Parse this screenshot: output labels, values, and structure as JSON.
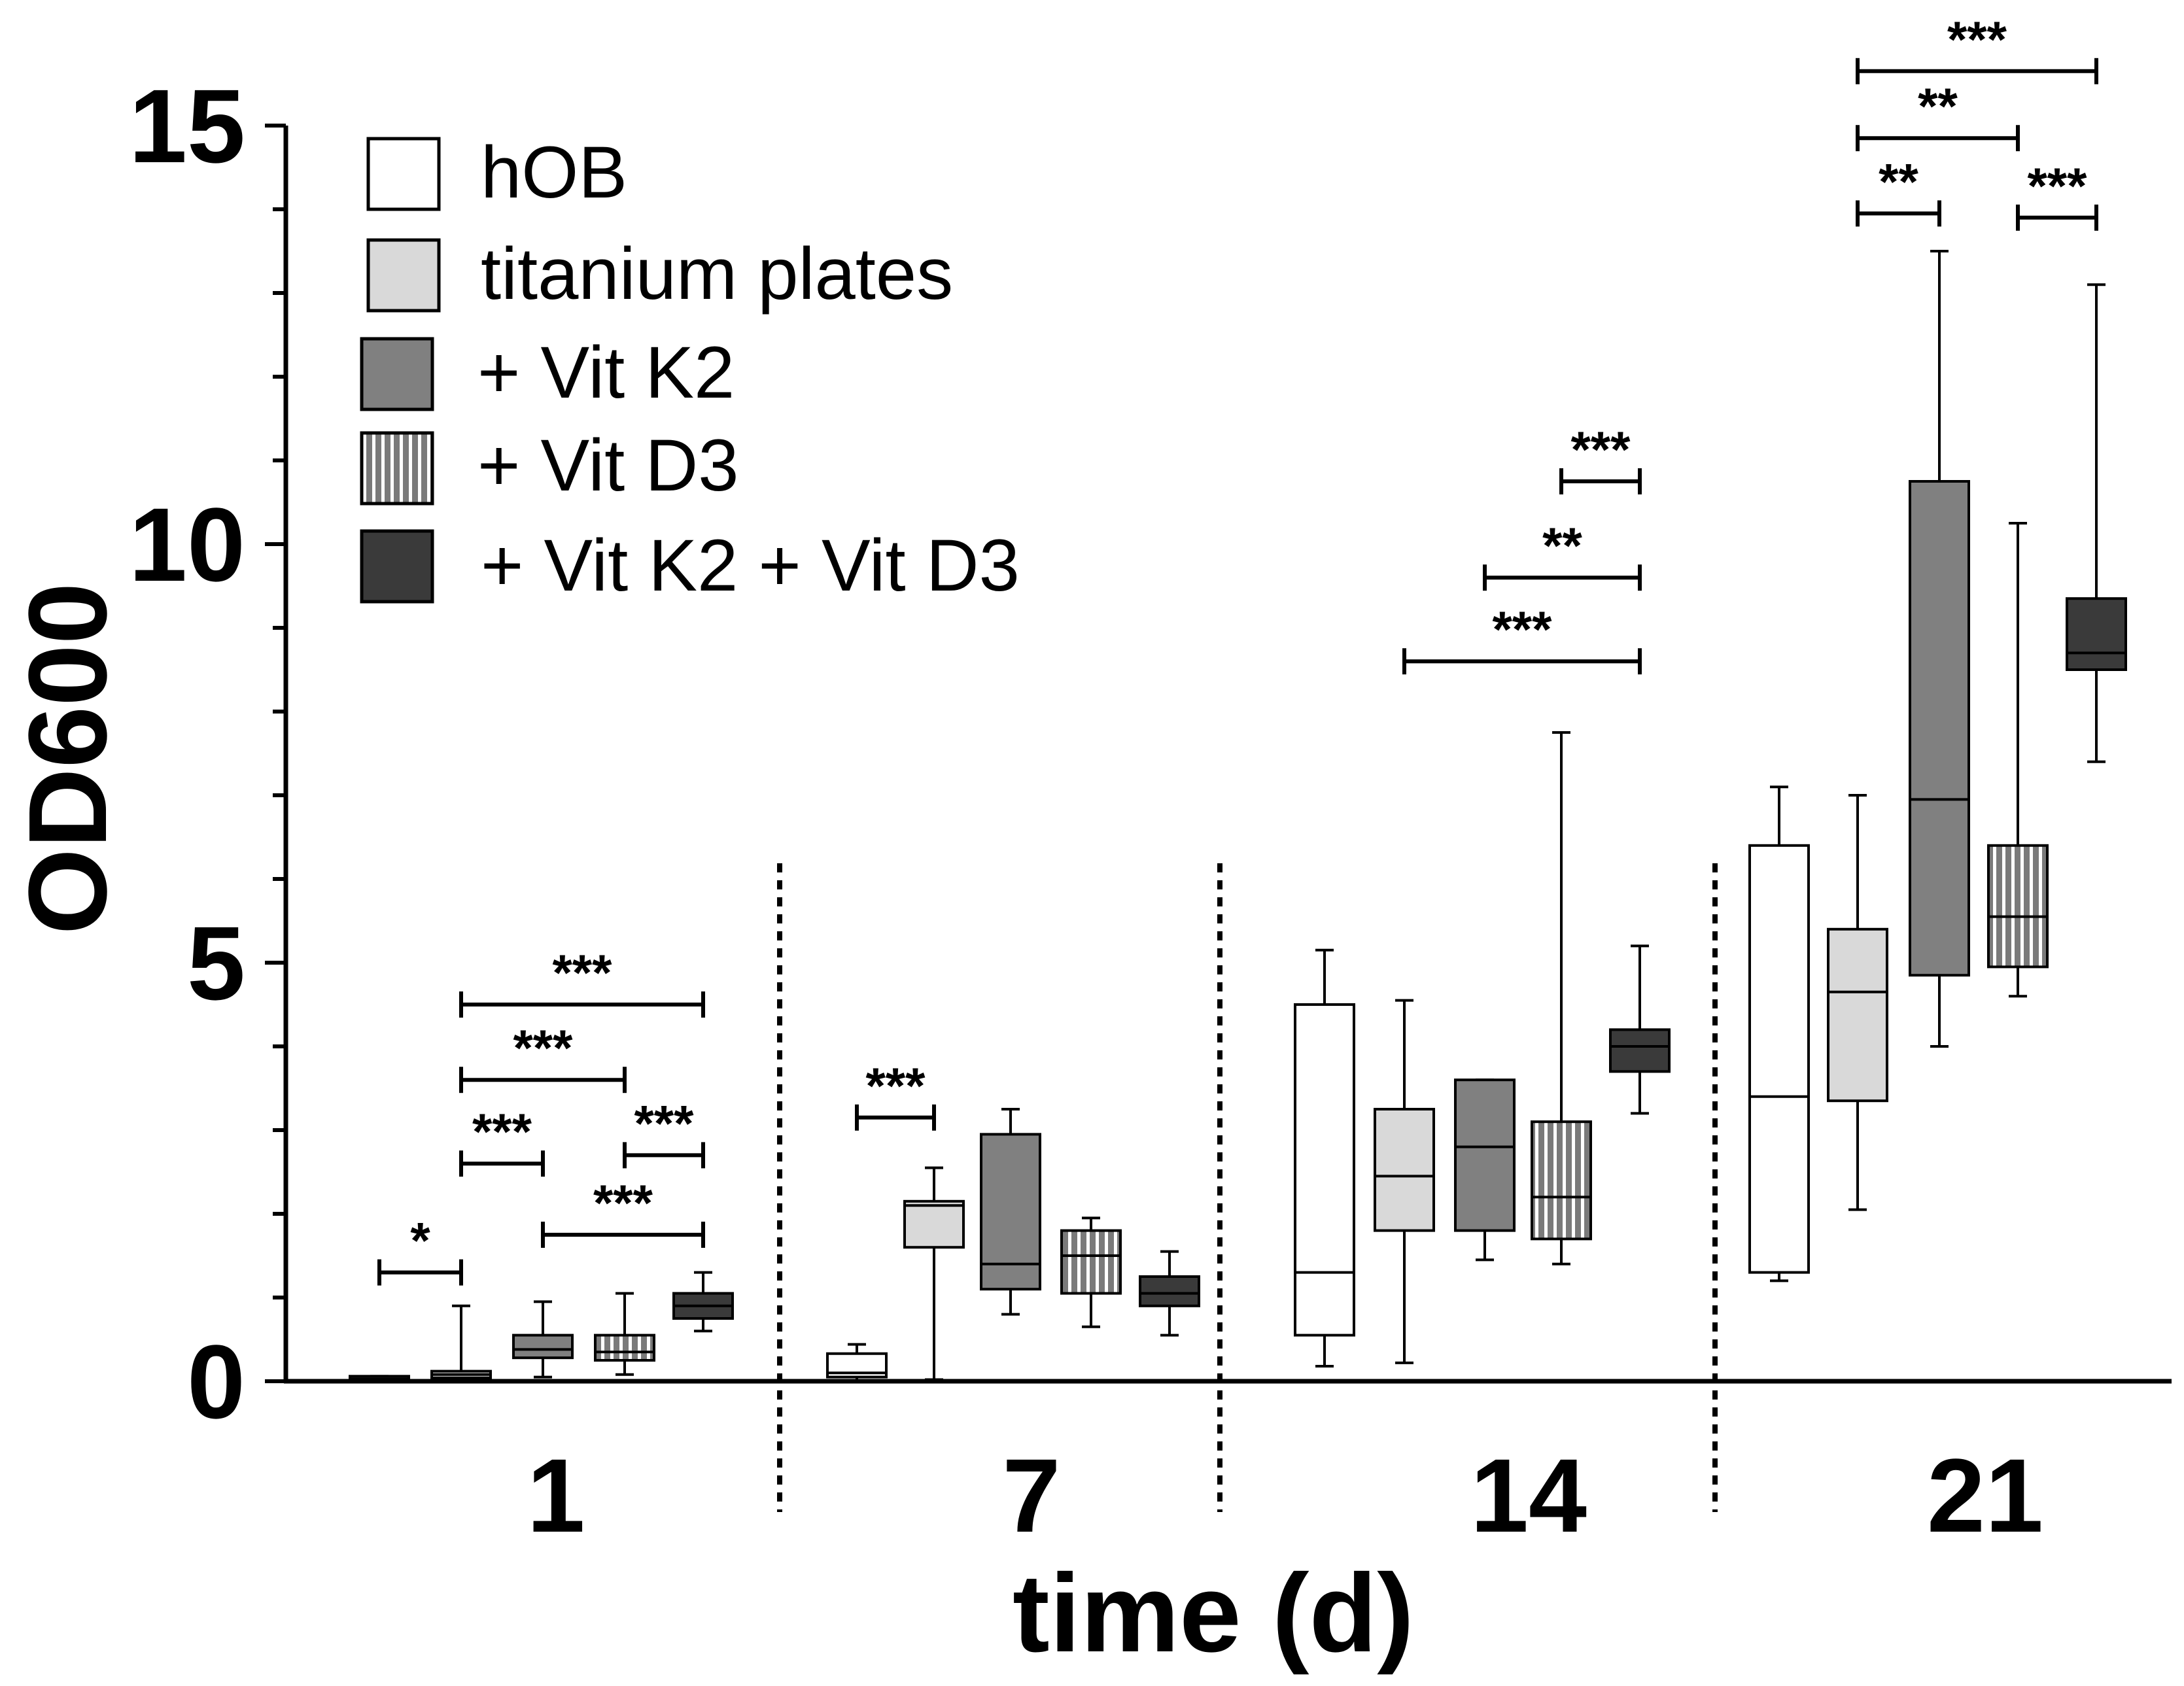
{
  "chart_data": {
    "type": "box",
    "title": "",
    "xlabel": "time (d)",
    "ylabel": "OD600",
    "ylim": [
      0,
      15
    ],
    "yticks": [
      "0",
      "5",
      "10",
      "15"
    ],
    "categories": [
      "1",
      "7",
      "14",
      "21"
    ],
    "legend": [
      {
        "name": "hOB",
        "fill": "#ffffff",
        "pattern": "none"
      },
      {
        "name": "titanium plates",
        "fill": "#d9d9d9",
        "pattern": "none"
      },
      {
        "name": "+ Vit K2",
        "fill": "#808080",
        "pattern": "none"
      },
      {
        "name": "+ Vit D3",
        "fill": "#7a7a7a",
        "pattern": "vertical-stripes"
      },
      {
        "name": "+ Vit K2 + Vit D3",
        "fill": "#3a3a3a",
        "pattern": "none"
      }
    ],
    "series": [
      {
        "name": "hOB",
        "boxes": [
          {
            "min": 0.0,
            "q1": 0.0,
            "median": 0.03,
            "q3": 0.06,
            "max": 0.06
          },
          {
            "min": 0.0,
            "q1": 0.05,
            "median": 0.1,
            "q3": 0.33,
            "max": 0.44
          },
          {
            "min": 0.18,
            "q1": 0.55,
            "median": 1.3,
            "q3": 4.5,
            "max": 5.15
          },
          {
            "min": 1.2,
            "q1": 1.3,
            "median": 3.4,
            "q3": 6.4,
            "max": 7.1
          }
        ]
      },
      {
        "name": "titanium plates",
        "boxes": [
          {
            "min": 0.0,
            "q1": 0.04,
            "median": 0.08,
            "q3": 0.12,
            "max": 0.9
          },
          {
            "min": 0.02,
            "q1": 1.6,
            "median": 2.1,
            "q3": 2.15,
            "max": 2.55
          },
          {
            "min": 0.22,
            "q1": 1.8,
            "median": 2.45,
            "q3": 3.25,
            "max": 4.55
          },
          {
            "min": 2.05,
            "q1": 3.35,
            "median": 4.65,
            "q3": 5.4,
            "max": 7.0
          }
        ]
      },
      {
        "name": "+ Vit K2",
        "boxes": [
          {
            "min": 0.05,
            "q1": 0.28,
            "median": 0.38,
            "q3": 0.55,
            "max": 0.95
          },
          {
            "min": 0.8,
            "q1": 1.1,
            "median": 1.4,
            "q3": 2.95,
            "max": 3.25
          },
          {
            "min": 1.45,
            "q1": 1.8,
            "median": 2.8,
            "q3": 3.6,
            "max": 3.6
          },
          {
            "min": 4.0,
            "q1": 4.85,
            "median": 6.95,
            "q3": 10.75,
            "max": 13.5
          }
        ]
      },
      {
        "name": "+ Vit D3",
        "boxes": [
          {
            "min": 0.08,
            "q1": 0.25,
            "median": 0.35,
            "q3": 0.55,
            "max": 1.05
          },
          {
            "min": 0.65,
            "q1": 1.05,
            "median": 1.5,
            "q3": 1.8,
            "max": 1.95
          },
          {
            "min": 1.4,
            "q1": 1.7,
            "median": 2.2,
            "q3": 3.1,
            "max": 7.75
          },
          {
            "min": 4.6,
            "q1": 4.95,
            "median": 5.55,
            "q3": 6.4,
            "max": 10.25
          }
        ]
      },
      {
        "name": "+ Vit K2 + Vit D3",
        "boxes": [
          {
            "min": 0.6,
            "q1": 0.75,
            "median": 0.9,
            "q3": 1.05,
            "max": 1.3
          },
          {
            "min": 0.55,
            "q1": 0.9,
            "median": 1.05,
            "q3": 1.25,
            "max": 1.55
          },
          {
            "min": 3.2,
            "q1": 3.7,
            "median": 4.0,
            "q3": 4.2,
            "max": 5.2
          },
          {
            "min": 7.4,
            "q1": 8.5,
            "median": 8.7,
            "q3": 9.35,
            "max": 13.1
          }
        ]
      }
    ],
    "significance": [
      {
        "timepoint": "1",
        "from": "hOB",
        "to": "titanium plates",
        "y": 1.3,
        "label": "*"
      },
      {
        "timepoint": "1",
        "from": "titanium plates",
        "to": "+ Vit K2",
        "y": 2.6,
        "label": "***"
      },
      {
        "timepoint": "1",
        "from": "titanium plates",
        "to": "+ Vit D3",
        "y": 3.6,
        "label": "***"
      },
      {
        "timepoint": "1",
        "from": "titanium plates",
        "to": "+ Vit K2 + Vit D3",
        "y": 4.5,
        "label": "***"
      },
      {
        "timepoint": "1",
        "from": "+ Vit K2",
        "to": "+ Vit K2 + Vit D3",
        "y": 1.75,
        "label": "***"
      },
      {
        "timepoint": "1",
        "from": "+ Vit D3",
        "to": "+ Vit K2 + Vit D3",
        "y": 2.7,
        "label": "***"
      },
      {
        "timepoint": "7",
        "from": "hOB",
        "to": "titanium plates",
        "y": 3.15,
        "label": "***"
      },
      {
        "timepoint": "14",
        "from": "titanium plates",
        "to": "+ Vit K2 + Vit D3",
        "y": 8.6,
        "label": "***"
      },
      {
        "timepoint": "14",
        "from": "+ Vit K2",
        "to": "+ Vit K2 + Vit D3",
        "y": 9.6,
        "label": "**"
      },
      {
        "timepoint": "14",
        "from": "+ Vit D3",
        "to": "+ Vit K2 + Vit D3",
        "y": 10.75,
        "label": "***"
      },
      {
        "timepoint": "21",
        "from": "titanium plates",
        "to": "+ Vit K2 + Vit D3",
        "y": 15.65,
        "label": "***"
      },
      {
        "timepoint": "21",
        "from": "titanium plates",
        "to": "+ Vit D3",
        "y": 14.85,
        "label": "**"
      },
      {
        "timepoint": "21",
        "from": "titanium plates",
        "to": "+ Vit K2",
        "y": 13.95,
        "label": "**"
      },
      {
        "timepoint": "21",
        "from": "+ Vit D3",
        "to": "+ Vit K2 + Vit D3",
        "y": 13.9,
        "label": "***"
      }
    ],
    "group_separators": "dotted vertical lines between timepoints",
    "grid": false,
    "legend_position": "top-left"
  }
}
